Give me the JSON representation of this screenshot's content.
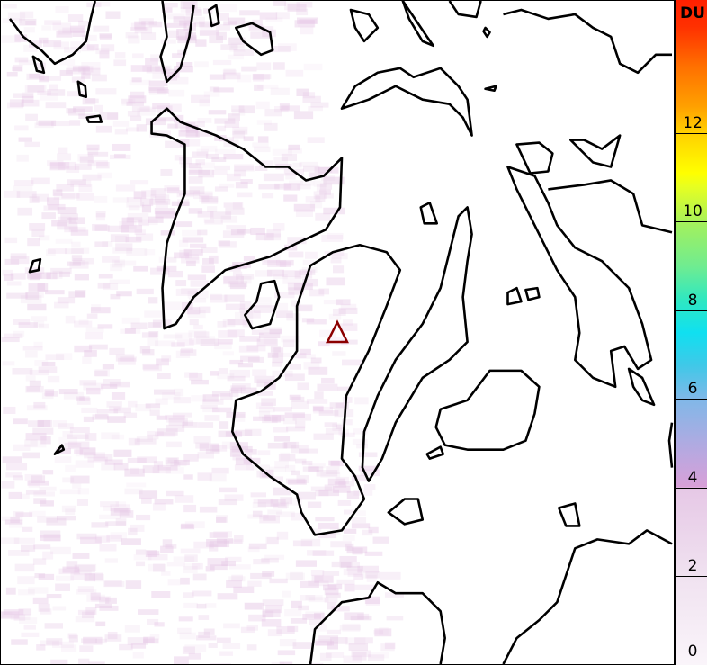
{
  "colorbar": {
    "unit_label": "DU",
    "ticks": [
      "0",
      "2",
      "4",
      "6",
      "8",
      "10",
      "12"
    ],
    "range": [
      0,
      15
    ],
    "colors": [
      "#faf5fa",
      "#e6c8e6",
      "#d8a0d8",
      "#80b8e8",
      "#10e0f0",
      "#a0f060",
      "#ffff00",
      "#ff7000",
      "#ff2000"
    ]
  },
  "map": {
    "marker": {
      "type": "volcano-triangle",
      "color": "#8b0000"
    },
    "coastline_color": "#000000",
    "signal_color": "#e6c8e6"
  }
}
